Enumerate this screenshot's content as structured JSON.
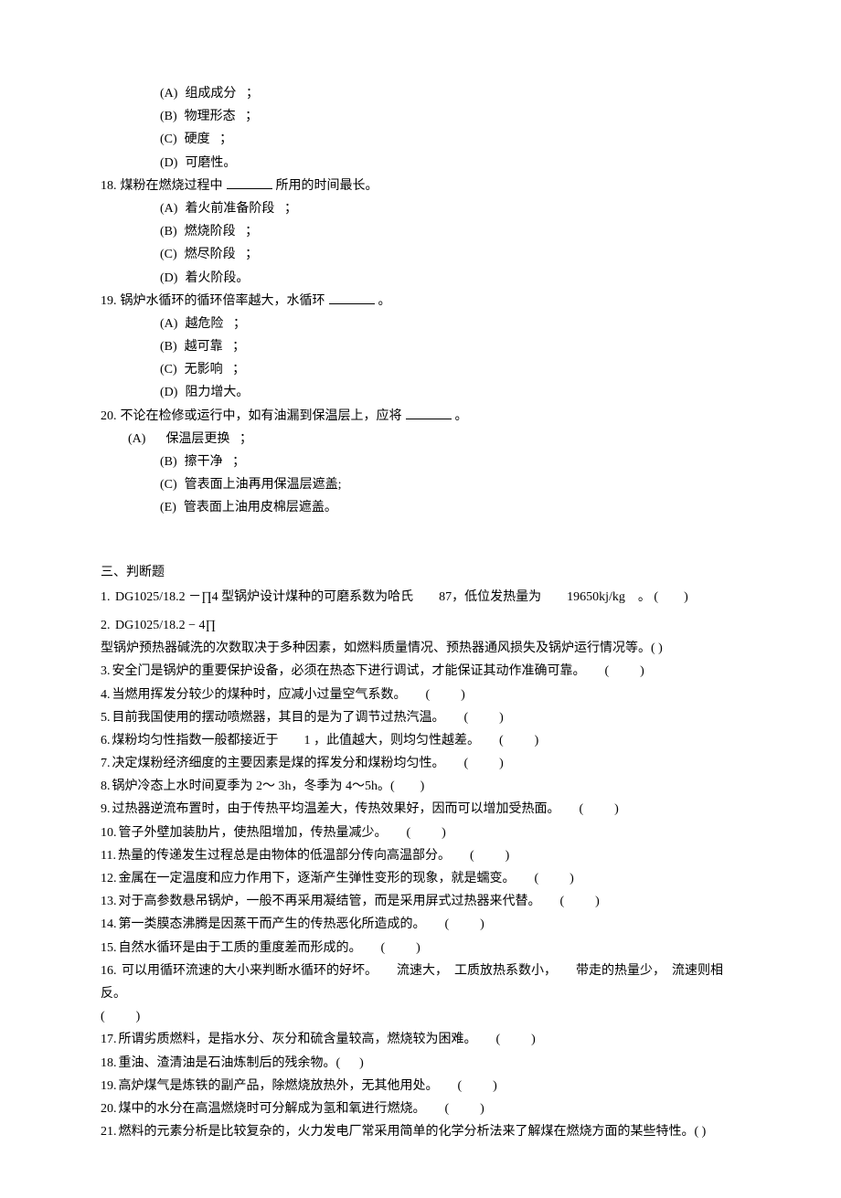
{
  "q17_options": [
    {
      "letter": "(A)",
      "text": "组成成分",
      "tail": "；"
    },
    {
      "letter": "(B)",
      "text": "物理形态",
      "tail": "；"
    },
    {
      "letter": "(C)",
      "text": "硬度",
      "tail": "；"
    },
    {
      "letter": "(D)",
      "text": "可磨性。",
      "tail": ""
    }
  ],
  "q18": {
    "num": "18.",
    "text": "煤粉在燃烧过程中",
    "suffix": "所用的时间最长。"
  },
  "q18_options": [
    {
      "letter": "(A)",
      "text": "着火前准备阶段",
      "tail": "；"
    },
    {
      "letter": "(B)",
      "text": "燃烧阶段",
      "tail": "；"
    },
    {
      "letter": "(C)",
      "text": "燃尽阶段",
      "tail": "；"
    },
    {
      "letter": "(D)",
      "text": "着火阶段。",
      "tail": ""
    }
  ],
  "q19": {
    "num": "19.",
    "text": "锅炉水循环的循环倍率越大，水循环",
    "suffix": "。"
  },
  "q19_options": [
    {
      "letter": "(A)",
      "text": "越危险",
      "tail": "；"
    },
    {
      "letter": "(B)",
      "text": "越可靠",
      "tail": "；"
    },
    {
      "letter": "(C)",
      "text": "无影响",
      "tail": "；"
    },
    {
      "letter": "(D)",
      "text": "阻力增大。",
      "tail": ""
    }
  ],
  "q20": {
    "num": "20.",
    "text": "不论在检修或运行中，如有油漏到保温层上，应将",
    "suffix": "。"
  },
  "q20_first": {
    "letter": "(A)",
    "text": "保温层更换",
    "tail": "；"
  },
  "q20_options": [
    {
      "letter": "(B)",
      "text": "擦干净",
      "tail": "；"
    },
    {
      "letter": "(C)",
      "text": "管表面上油再用保温层遮盖;",
      "tail": ""
    },
    {
      "letter": "(E)",
      "text": "管表面上油用皮棉层遮盖。",
      "tail": ""
    }
  ],
  "section3_title": "三、判断题",
  "tf": [
    {
      "num": "1.",
      "pre": "DG1025/18.2 －∏4",
      "post": "型锅炉设计煤种的可磨系数为哈氏　　87，低位发热量为　　19650kj/kg　。 (　　)"
    },
    {
      "num": "2.",
      "pre": "DG1025/18.2 − 4∏",
      "post": ""
    }
  ],
  "tf2_line2": "型锅炉预热器碱洗的次数取决于多种因素，如燃料质量情况、预热器通风损失及锅炉运行情况等。( )",
  "tf_rest": [
    {
      "num": "3.",
      "text": "安全门是锅炉的重要保护设备，必须在热态下进行调试，才能保证其动作准确可靠。",
      "paren": "(　　)"
    },
    {
      "num": "4.",
      "text": "当燃用挥发分较少的煤种时，应减小过量空气系数。",
      "paren": "(　　)"
    },
    {
      "num": "5.",
      "text": "目前我国使用的摆动喷燃器，其目的是为了调节过热汽温。",
      "paren": "(　　)"
    },
    {
      "num": "6.",
      "text": "煤粉均匀性指数一般都接近于　　1 ，此值越大，则均匀性越差。",
      "paren": "(　　)"
    },
    {
      "num": "7.",
      "text": "决定煤粉经济细度的主要因素是煤的挥发分和煤粉均匀性。",
      "paren": "(　　)"
    },
    {
      "num": "8.",
      "text": "锅炉冷态上水时间夏季为  2～ 3h，冬季为 4～5h。(　　)",
      "paren": ""
    },
    {
      "num": "9.",
      "text": "过热器逆流布置时，由于传热平均温差大，传热效果好，因而可以增加受热面。",
      "paren": "(　　)"
    },
    {
      "num": "10.",
      "text": "管子外壁加装肋片，使热阻增加，传热量减少。",
      "paren": "(　　)"
    },
    {
      "num": "11.",
      "text": "热量的传递发生过程总是由物体的低温部分传向高温部分。",
      "paren": "(　　)"
    },
    {
      "num": "12.",
      "text": "金属在一定温度和应力作用下，逐渐产生弹性变形的现象，就是蠕变。",
      "paren": "(　　)"
    },
    {
      "num": "13.",
      "text": "对于高参数悬吊锅炉，一般不再采用凝结管，而是采用屏式过热器来代替。",
      "paren": "(　　)"
    },
    {
      "num": "14.",
      "text": "第一类膜态沸腾是因蒸干而产生的传热恶化所造成的。",
      "paren": "(　　)"
    },
    {
      "num": "15.",
      "text": "自然水循环是由于工质的重度差而形成的。",
      "paren": "(　　)"
    }
  ],
  "tf16": {
    "num": "16.",
    "text": "可以用循环流速的大小来判断水循环的好坏。　　流速大，　工质放热系数小，　　带走的热量少，　流速则相反。",
    "paren": "(　　)"
  },
  "tf_rest2": [
    {
      "num": "17.",
      "text": "所谓劣质燃料，是指水分、灰分和硫含量较高，燃烧较为困难。",
      "paren": "(　　)"
    },
    {
      "num": "18.",
      "text": "重油、渣清油是石油炼制后的残余物。(",
      "paren": ")"
    },
    {
      "num": "19.",
      "text": "高炉煤气是炼铁的副产品，除燃烧放热外，无其他用处。",
      "paren": "(　　)"
    },
    {
      "num": "20.",
      "text": "煤中的水分在高温燃烧时可分解成为氢和氧进行燃烧。",
      "paren": "(　　)"
    },
    {
      "num": "21.",
      "text": "燃料的元素分析是比较复杂的，火力发电厂常采用简单的化学分析法来了解煤在燃烧方面的某些特性。( )",
      "paren": ""
    }
  ]
}
